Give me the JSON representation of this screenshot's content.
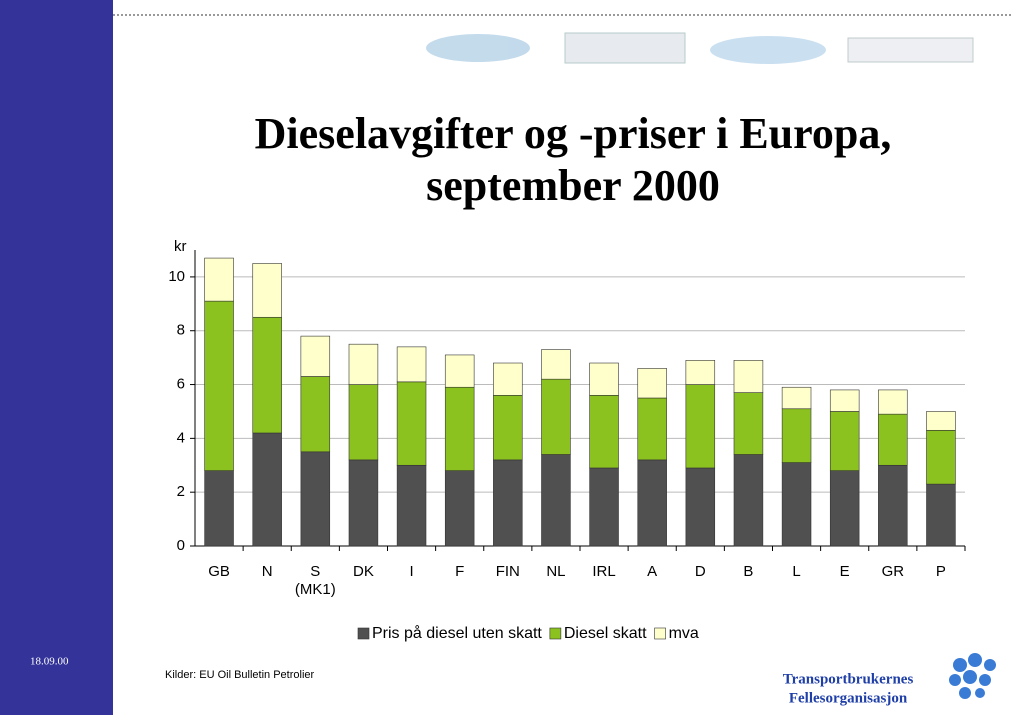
{
  "chart_data": {
    "type": "stacked_bar",
    "title": [
      "Dieselavgifter og -priser i Europa,",
      "september 2000"
    ],
    "ylabel": "kr",
    "categories": [
      "GB",
      "N",
      "S\n(MK1)",
      "DK",
      "I",
      "F",
      "FIN",
      "NL",
      "IRL",
      "A",
      "D",
      "B",
      "L",
      "E",
      "GR",
      "P"
    ],
    "series": [
      {
        "name": "Pris på diesel uten skatt",
        "color": "#505050",
        "values": [
          2.8,
          4.2,
          3.5,
          3.2,
          3.0,
          2.8,
          3.2,
          3.4,
          2.9,
          3.2,
          2.9,
          3.4,
          3.1,
          2.8,
          3.0,
          2.3
        ]
      },
      {
        "name": "Diesel skatt",
        "color": "#8cc21f",
        "values": [
          6.3,
          4.3,
          2.8,
          2.8,
          3.1,
          3.1,
          2.4,
          2.8,
          2.7,
          2.3,
          3.1,
          2.3,
          2.0,
          2.2,
          1.9,
          2.0
        ]
      },
      {
        "name": "mva",
        "color": "#ffffcc",
        "values": [
          1.6,
          2.0,
          1.5,
          1.5,
          1.3,
          1.2,
          1.2,
          1.1,
          1.2,
          1.1,
          0.9,
          1.2,
          0.8,
          0.8,
          0.9,
          0.7
        ]
      }
    ],
    "ylim": [
      0,
      11
    ],
    "yticks": [
      0,
      2,
      4,
      6,
      8,
      10
    ],
    "grid": true,
    "legend": "bottom"
  },
  "slide": {
    "date": "18.09.00",
    "source": "Kilder: EU Oil Bulletin Petrolier",
    "organization": [
      "Transportbrukernes",
      "Fellesorganisasjon"
    ]
  }
}
